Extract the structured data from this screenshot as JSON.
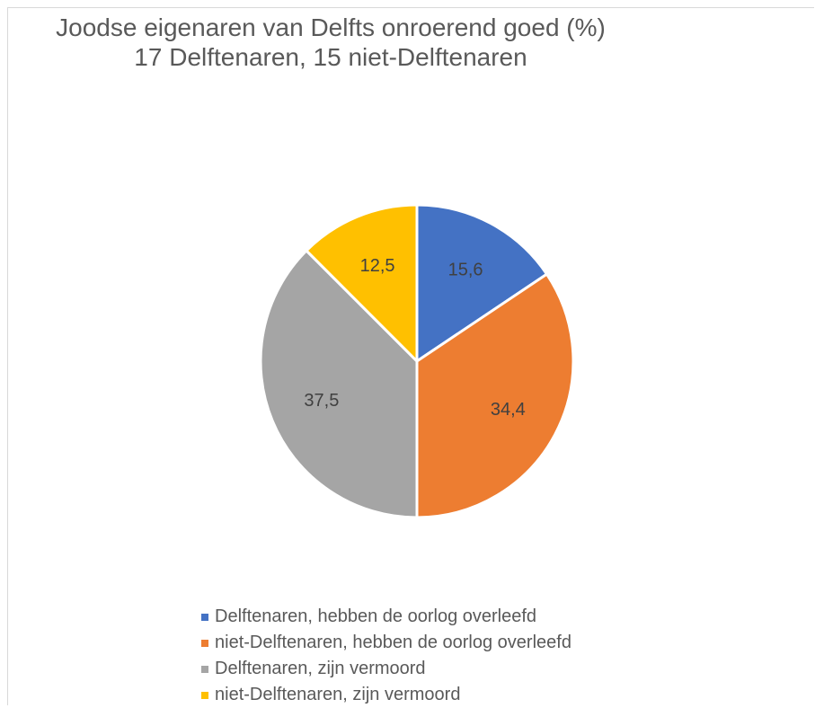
{
  "chart_data": {
    "type": "pie",
    "title": "Joodse eigenaren van Delfts onroerend goed (%)",
    "subtitle": "17 Delftenaren, 15 niet-Delftenaren",
    "categories": [
      "Delftenaren, hebben de oorlog overleefd",
      "niet-Delftenaren, hebben de oorlog overleefd",
      "Delftenaren, zijn vermoord",
      "niet-Delftenaren, zijn vermoord"
    ],
    "values": [
      15.6,
      34.4,
      37.5,
      12.5
    ],
    "value_labels": [
      "15,6",
      "34,4",
      "37,5",
      "12,5"
    ],
    "colors": [
      "#4472C4",
      "#ED7D31",
      "#A5A5A5",
      "#FFC000"
    ],
    "legend_position": "bottom"
  }
}
